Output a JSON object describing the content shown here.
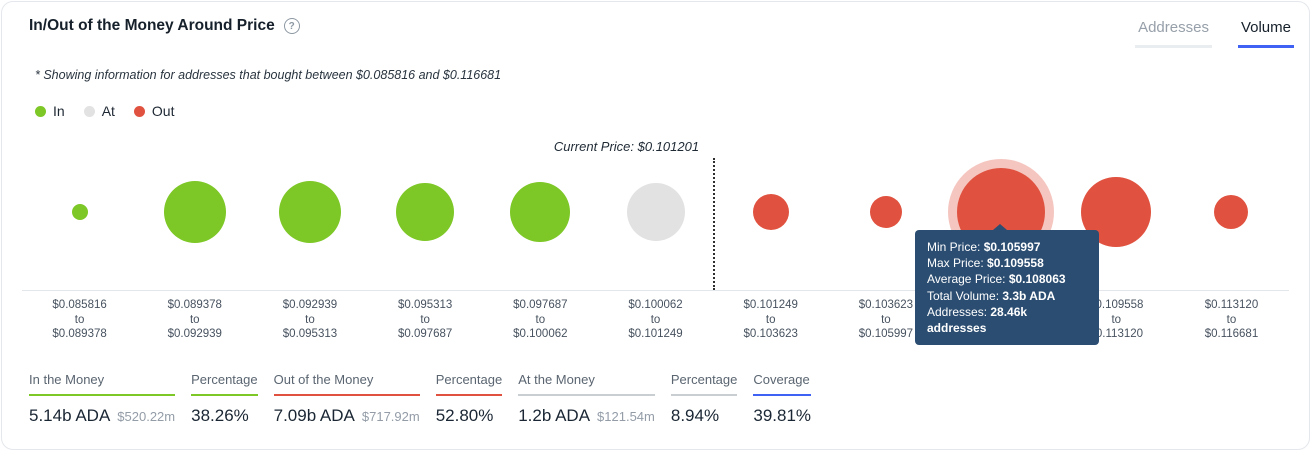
{
  "header": {
    "title": "In/Out of the Money Around Price",
    "help_glyph": "?",
    "tabs": [
      {
        "label": "Addresses",
        "active": false
      },
      {
        "label": "Volume",
        "active": true
      }
    ]
  },
  "subtitle": "* Showing information for addresses that bought between $0.085816 and $0.116681",
  "legend": [
    {
      "label": "In",
      "color": "#7dc726"
    },
    {
      "label": "At",
      "color": "#e2e2e2"
    },
    {
      "label": "Out",
      "color": "#e0523f"
    }
  ],
  "colors": {
    "in": "#7dc726",
    "at": "#e2e2e2",
    "out": "#e0523f",
    "tab_active_underline": "#3f62f4",
    "tab_inactive_underline": "#e9edf0",
    "tooltip_bg": "#2b4d71"
  },
  "chart_data": {
    "type": "bubble",
    "range_joiner": "to",
    "current_price": 0.101201,
    "current_price_label": "Current Price: $0.101201",
    "current_price_divider_after_column": 6,
    "columns": [
      {
        "from": 0.085816,
        "to": 0.089378,
        "from_label": "$0.085816",
        "to_label": "$0.089378",
        "status": "in",
        "radius_px": 8,
        "hovered": false
      },
      {
        "from": 0.089378,
        "to": 0.092939,
        "from_label": "$0.089378",
        "to_label": "$0.092939",
        "status": "in",
        "radius_px": 31,
        "hovered": false
      },
      {
        "from": 0.092939,
        "to": 0.095313,
        "from_label": "$0.092939",
        "to_label": "$0.095313",
        "status": "in",
        "radius_px": 31,
        "hovered": false
      },
      {
        "from": 0.095313,
        "to": 0.097687,
        "from_label": "$0.095313",
        "to_label": "$0.097687",
        "status": "in",
        "radius_px": 29,
        "hovered": false
      },
      {
        "from": 0.097687,
        "to": 0.100062,
        "from_label": "$0.097687",
        "to_label": "$0.100062",
        "status": "in",
        "radius_px": 30,
        "hovered": false
      },
      {
        "from": 0.100062,
        "to": 0.101249,
        "from_label": "$0.100062",
        "to_label": "$0.101249",
        "status": "at",
        "radius_px": 29,
        "hovered": false
      },
      {
        "from": 0.101249,
        "to": 0.103623,
        "from_label": "$0.101249",
        "to_label": "$0.103623",
        "status": "out",
        "radius_px": 18,
        "hovered": false
      },
      {
        "from": 0.103623,
        "to": 0.105997,
        "from_label": "$0.103623",
        "to_label": "$0.105997",
        "status": "out",
        "radius_px": 16,
        "hovered": false
      },
      {
        "from": 0.105997,
        "to": 0.109558,
        "from_label": "$0.105997",
        "to_label": "$0.109558",
        "status": "out",
        "radius_px": 44,
        "hovered": true,
        "min_price": "$0.105997",
        "max_price": "$0.109558",
        "average_price": "$0.108063",
        "total_volume": "3.3b ADA",
        "addresses": "28.46k addresses"
      },
      {
        "from": 0.109558,
        "to": 0.11312,
        "from_label": "$0.109558",
        "to_label": "$0.113120",
        "status": "out",
        "radius_px": 35,
        "hovered": false
      },
      {
        "from": 0.11312,
        "to": 0.116681,
        "from_label": "$0.113120",
        "to_label": "$0.116681",
        "status": "out",
        "radius_px": 17,
        "hovered": false
      }
    ]
  },
  "tooltip": {
    "rows": [
      {
        "label": "Min Price:",
        "value": "$0.105997"
      },
      {
        "label": "Max Price:",
        "value": "$0.109558"
      },
      {
        "label": "Average Price:",
        "value": "$0.108063"
      },
      {
        "label": "Total Volume:",
        "value": "3.3b ADA"
      },
      {
        "label": "Addresses:",
        "value": "28.46k addresses"
      }
    ]
  },
  "stats": [
    {
      "label": "In the Money",
      "underline_color": "#7dc726",
      "value": "5.14b ADA",
      "secondary": "$520.22m"
    },
    {
      "label": "Percentage",
      "underline_color": "#7dc726",
      "value": "38.26%",
      "secondary": ""
    },
    {
      "label": "Out of the Money",
      "underline_color": "#e0523f",
      "value": "7.09b ADA",
      "secondary": "$717.92m"
    },
    {
      "label": "Percentage",
      "underline_color": "#e0523f",
      "value": "52.80%",
      "secondary": ""
    },
    {
      "label": "At the Money",
      "underline_color": "#c9ced3",
      "value": "1.2b ADA",
      "secondary": "$121.54m"
    },
    {
      "label": "Percentage",
      "underline_color": "#c9ced3",
      "value": "8.94%",
      "secondary": ""
    },
    {
      "label": "Coverage",
      "underline_color": "#3f62f4",
      "value": "39.81%",
      "secondary": ""
    }
  ]
}
